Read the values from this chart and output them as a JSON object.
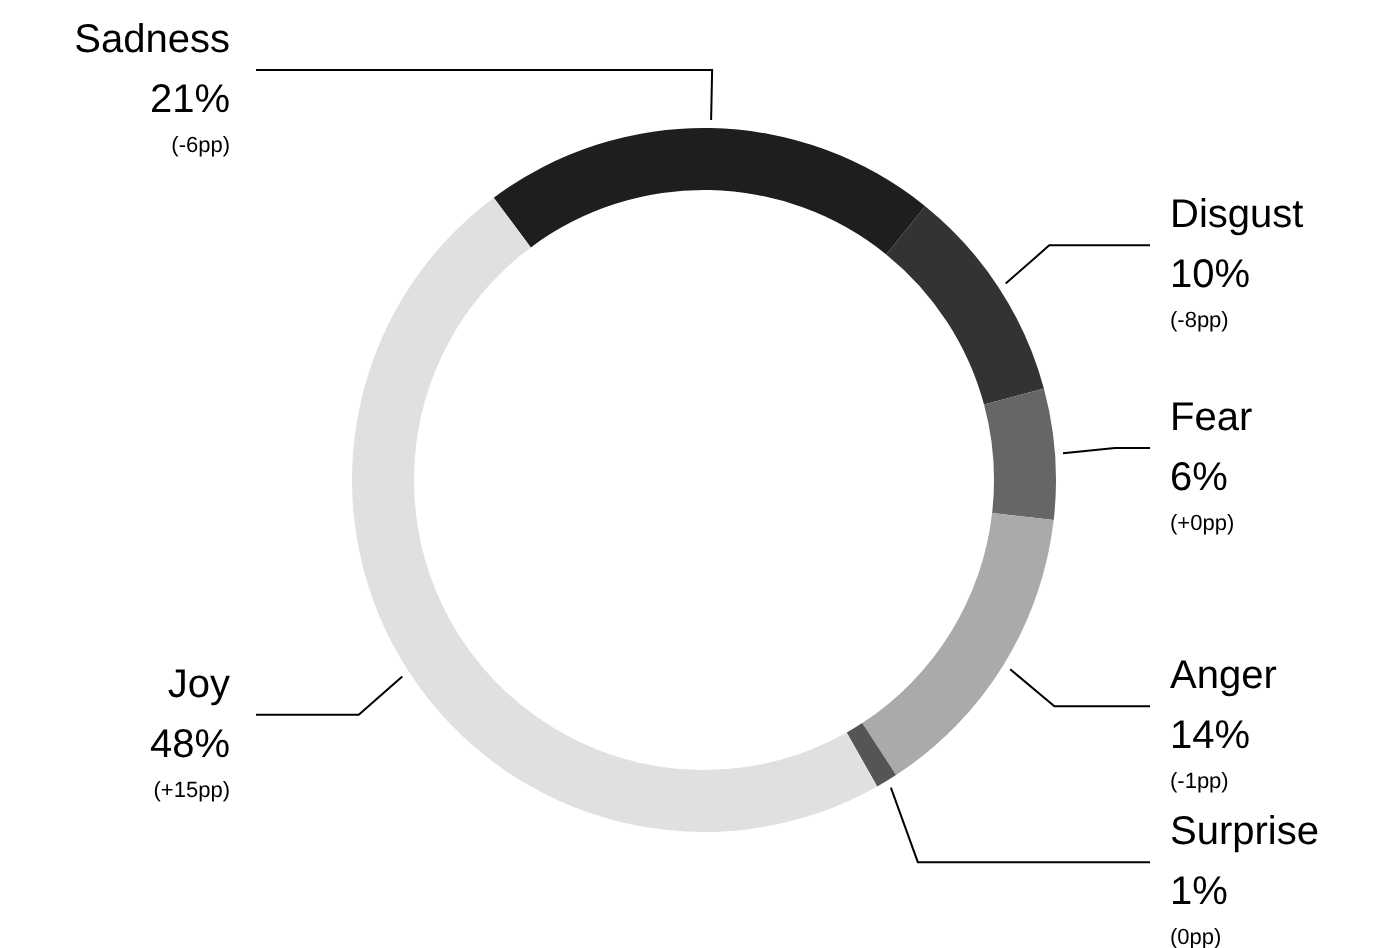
{
  "chart_data": {
    "type": "donut",
    "categories": [
      "Sadness",
      "Disgust",
      "Fear",
      "Anger",
      "Surprise",
      "Joy"
    ],
    "values": [
      21,
      10,
      6,
      14,
      1,
      48
    ],
    "colors": [
      "#1e1e1e",
      "#333333",
      "#666666",
      "#aaaaaa",
      "#555555",
      "#e0e0e0"
    ],
    "value_labels": [
      "21%",
      "10%",
      "6%",
      "14%",
      "1%",
      "48%"
    ],
    "annotations": [
      "(-6pp)",
      "(-8pp)",
      "(+0pp)",
      "(-1pp)",
      "(0pp)",
      "(+15pp)"
    ]
  }
}
